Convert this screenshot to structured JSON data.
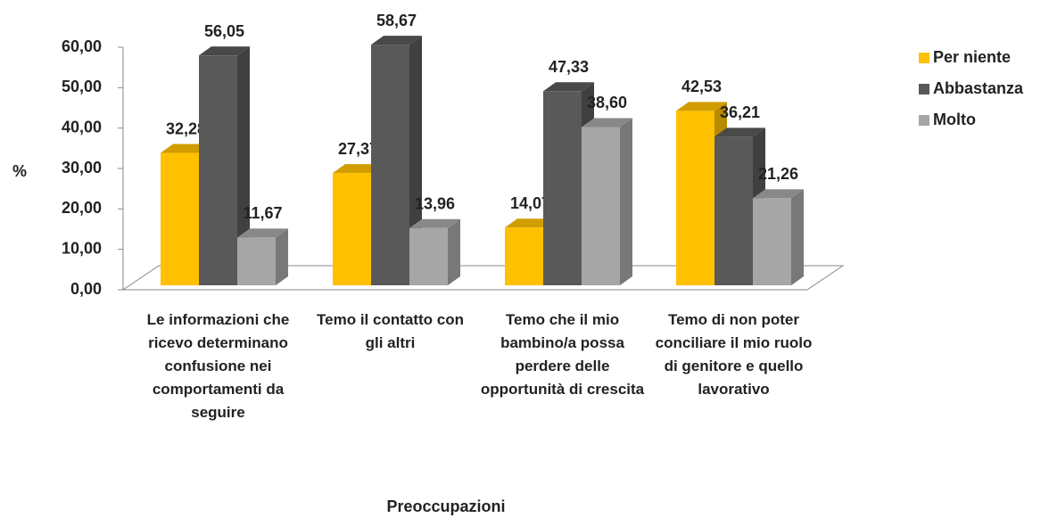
{
  "chart_data": {
    "type": "bar3d",
    "categories": [
      "Le informazioni che ricevo determinano confusione nei comportamenti da seguire",
      "Temo il contatto con gli altri",
      "Temo che il mio bambino/a possa perdere delle opportunità di crescita",
      "Temo di non poter conciliare il mio ruolo di genitore e quello lavorativo"
    ],
    "series": [
      {
        "name": "Per niente",
        "color": "#FFC000",
        "values": [
          32.28,
          27.37,
          14.07,
          42.53
        ],
        "value_labels": [
          "32,28",
          "27,37",
          "14,07",
          "42,53"
        ]
      },
      {
        "name": "Abbastanza",
        "color": "#595959",
        "values": [
          56.05,
          58.67,
          47.33,
          36.21
        ],
        "value_labels": [
          "56,05",
          "58,67",
          "47,33",
          "36,21"
        ]
      },
      {
        "name": "Molto",
        "color": "#A6A6A6",
        "values": [
          11.67,
          13.96,
          38.6,
          21.26
        ],
        "value_labels": [
          "11,67",
          "13,96",
          "38,60",
          "21,26"
        ]
      }
    ],
    "ylabel": "%",
    "xlabel": "Preoccupazioni",
    "ylim": [
      0,
      60
    ],
    "yticks": [
      {
        "value": 0,
        "label": "0,00"
      },
      {
        "value": 10,
        "label": "10,00"
      },
      {
        "value": 20,
        "label": "20,00"
      },
      {
        "value": 30,
        "label": "30,00"
      },
      {
        "value": 40,
        "label": "40,00"
      },
      {
        "value": 50,
        "label": "50,00"
      },
      {
        "value": 60,
        "label": "60,00"
      }
    ],
    "legend": "right"
  }
}
